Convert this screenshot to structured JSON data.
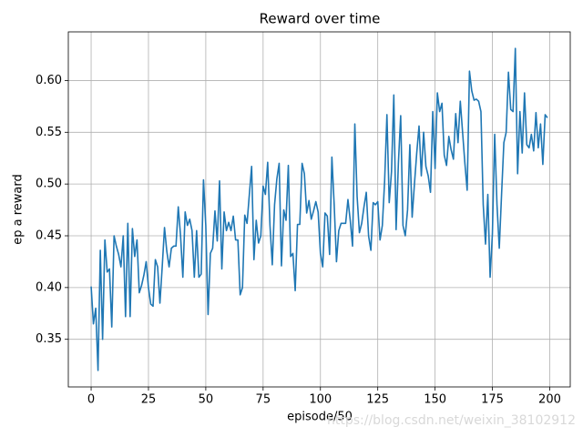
{
  "chart_data": {
    "type": "line",
    "title": "Reward over time",
    "x_label": "episode/50",
    "y_label": "ep a reward",
    "watermark": "https://blog.csdn.net/weixin_38102912",
    "xlim": [
      -9.95,
      208.95
    ],
    "xticks": [
      0,
      25,
      50,
      75,
      100,
      125,
      150,
      175,
      200
    ],
    "ylim": [
      0.304,
      0.647
    ],
    "yticks": [
      0.35,
      {
        "value": 0.4,
        "label": "0.40"
      },
      0.45,
      {
        "value": 0.5,
        "label": "0.50"
      },
      0.55,
      {
        "value": 0.6,
        "label": "0.60"
      }
    ],
    "grid": true,
    "x": [
      0,
      1,
      2,
      3,
      4,
      5,
      6,
      7,
      8,
      9,
      10,
      11,
      12,
      13,
      14,
      15,
      16,
      17,
      18,
      19,
      20,
      21,
      22,
      23,
      24,
      25,
      26,
      27,
      28,
      29,
      30,
      31,
      32,
      33,
      34,
      35,
      36,
      37,
      38,
      39,
      40,
      41,
      42,
      43,
      44,
      45,
      46,
      47,
      48,
      49,
      50,
      51,
      52,
      53,
      54,
      55,
      56,
      57,
      58,
      59,
      60,
      61,
      62,
      63,
      64,
      65,
      66,
      67,
      68,
      69,
      70,
      71,
      72,
      73,
      74,
      75,
      76,
      77,
      78,
      79,
      80,
      81,
      82,
      83,
      84,
      85,
      86,
      87,
      88,
      89,
      90,
      91,
      92,
      93,
      94,
      95,
      96,
      97,
      98,
      99,
      100,
      101,
      102,
      103,
      104,
      105,
      106,
      107,
      108,
      109,
      110,
      111,
      112,
      113,
      114,
      115,
      116,
      117,
      118,
      119,
      120,
      121,
      122,
      123,
      124,
      125,
      126,
      127,
      128,
      129,
      130,
      131,
      132,
      133,
      134,
      135,
      136,
      137,
      138,
      139,
      140,
      141,
      142,
      143,
      144,
      145,
      146,
      147,
      148,
      149,
      150,
      151,
      152,
      153,
      154,
      155,
      156,
      157,
      158,
      159,
      160,
      161,
      162,
      163,
      164,
      165,
      166,
      167,
      168,
      169,
      170,
      171,
      172,
      173,
      174,
      175,
      176,
      177,
      178,
      179,
      180,
      181,
      182,
      183,
      184,
      185,
      186,
      187,
      188,
      189,
      190,
      191,
      192,
      193,
      194,
      195,
      196,
      197,
      198,
      199
    ],
    "series": [
      {
        "color": "#1f77b4",
        "values": [
          0.401,
          0.365,
          0.38,
          0.32,
          0.436,
          0.35,
          0.446,
          0.415,
          0.418,
          0.362,
          0.45,
          0.44,
          0.432,
          0.42,
          0.45,
          0.372,
          0.462,
          0.372,
          0.457,
          0.43,
          0.446,
          0.395,
          0.402,
          0.412,
          0.425,
          0.4,
          0.384,
          0.382,
          0.427,
          0.42,
          0.385,
          0.42,
          0.458,
          0.435,
          0.42,
          0.438,
          0.44,
          0.44,
          0.478,
          0.45,
          0.41,
          0.473,
          0.46,
          0.466,
          0.455,
          0.41,
          0.455,
          0.41,
          0.413,
          0.504,
          0.46,
          0.374,
          0.433,
          0.438,
          0.474,
          0.445,
          0.503,
          0.418,
          0.473,
          0.455,
          0.463,
          0.455,
          0.469,
          0.446,
          0.446,
          0.393,
          0.4,
          0.47,
          0.462,
          0.49,
          0.517,
          0.427,
          0.465,
          0.443,
          0.45,
          0.498,
          0.49,
          0.521,
          0.46,
          0.422,
          0.48,
          0.505,
          0.52,
          0.421,
          0.475,
          0.465,
          0.518,
          0.43,
          0.433,
          0.397,
          0.461,
          0.461,
          0.52,
          0.51,
          0.472,
          0.484,
          0.466,
          0.474,
          0.483,
          0.473,
          0.433,
          0.42,
          0.472,
          0.469,
          0.432,
          0.526,
          0.48,
          0.425,
          0.455,
          0.462,
          0.462,
          0.462,
          0.485,
          0.465,
          0.44,
          0.558,
          0.488,
          0.453,
          0.462,
          0.478,
          0.492,
          0.45,
          0.436,
          0.482,
          0.48,
          0.483,
          0.446,
          0.46,
          0.503,
          0.567,
          0.482,
          0.512,
          0.586,
          0.456,
          0.52,
          0.566,
          0.46,
          0.45,
          0.475,
          0.538,
          0.468,
          0.5,
          0.53,
          0.556,
          0.508,
          0.55,
          0.517,
          0.508,
          0.492,
          0.57,
          0.515,
          0.588,
          0.57,
          0.578,
          0.528,
          0.518,
          0.546,
          0.533,
          0.524,
          0.568,
          0.54,
          0.58,
          0.55,
          0.52,
          0.494,
          0.609,
          0.59,
          0.581,
          0.582,
          0.58,
          0.57,
          0.48,
          0.442,
          0.49,
          0.41,
          0.452,
          0.548,
          0.48,
          0.438,
          0.49,
          0.54,
          0.55,
          0.608,
          0.572,
          0.57,
          0.631,
          0.51,
          0.57,
          0.53,
          0.588,
          0.538,
          0.535,
          0.548,
          0.532,
          0.569,
          0.535,
          0.558,
          0.519,
          0.567,
          0.564
        ]
      }
    ]
  }
}
